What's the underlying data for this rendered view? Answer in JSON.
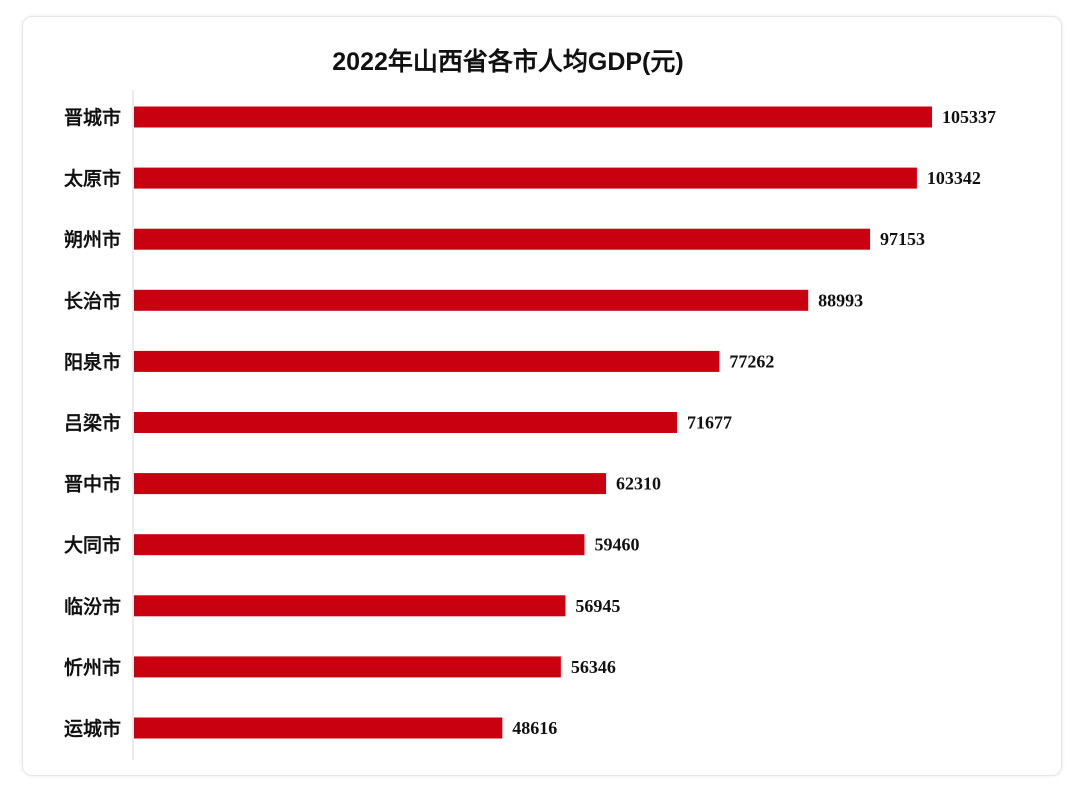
{
  "chart_data": {
    "type": "bar",
    "orientation": "horizontal",
    "title": "2022年山西省各市人均GDP(元)",
    "categories": [
      "晋城市",
      "太原市",
      "朔州市",
      "长治市",
      "阳泉市",
      "吕梁市",
      "晋中市",
      "大同市",
      "临汾市",
      "忻州市",
      "运城市"
    ],
    "values": [
      105337,
      103342,
      97153,
      88993,
      77262,
      71677,
      62310,
      59460,
      56945,
      56346,
      48616
    ],
    "xlabel": "",
    "ylabel": "",
    "grid": false,
    "legend": "none",
    "bar_color": "#c8000f"
  }
}
